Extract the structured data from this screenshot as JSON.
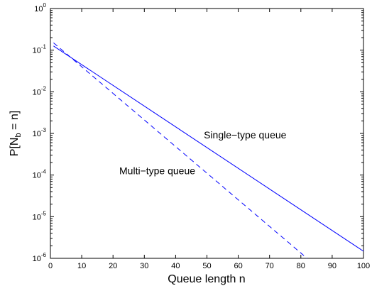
{
  "chart_data": {
    "type": "line",
    "xlabel": "Queue length n",
    "ylabel_main": "P[N",
    "ylabel_sub": "b",
    "ylabel_tail": " = n]",
    "xlim": [
      0,
      100
    ],
    "ylim": [
      1e-06,
      1
    ],
    "yscale": "log",
    "grid": false,
    "x_ticks": [
      0,
      10,
      20,
      30,
      40,
      50,
      60,
      70,
      80,
      90,
      100
    ],
    "y_ticks": [
      {
        "value": 1e-06,
        "base": "10",
        "exp": "-6"
      },
      {
        "value": 1e-05,
        "base": "10",
        "exp": "-5"
      },
      {
        "value": 0.0001,
        "base": "10",
        "exp": "-4"
      },
      {
        "value": 0.001,
        "base": "10",
        "exp": "-3"
      },
      {
        "value": 0.01,
        "base": "10",
        "exp": "-2"
      },
      {
        "value": 0.1,
        "base": "10",
        "exp": "-1"
      },
      {
        "value": 1,
        "base": "10",
        "exp": "0"
      }
    ],
    "series": [
      {
        "x": [
          1,
          100
        ],
        "y": [
          0.126,
          1.48e-06
        ],
        "color": "#0000ff",
        "dash": "solid"
      },
      {
        "x": [
          1,
          82
        ],
        "y": [
          0.15,
          1e-06
        ],
        "color": "#0000ff",
        "dash": "dashed"
      }
    ],
    "annotations": [
      {
        "text": "Single−type queue",
        "x": 49,
        "y": 0.00076
      },
      {
        "text": "Multi−type queue",
        "x": 22,
        "y": 0.000105
      }
    ]
  }
}
